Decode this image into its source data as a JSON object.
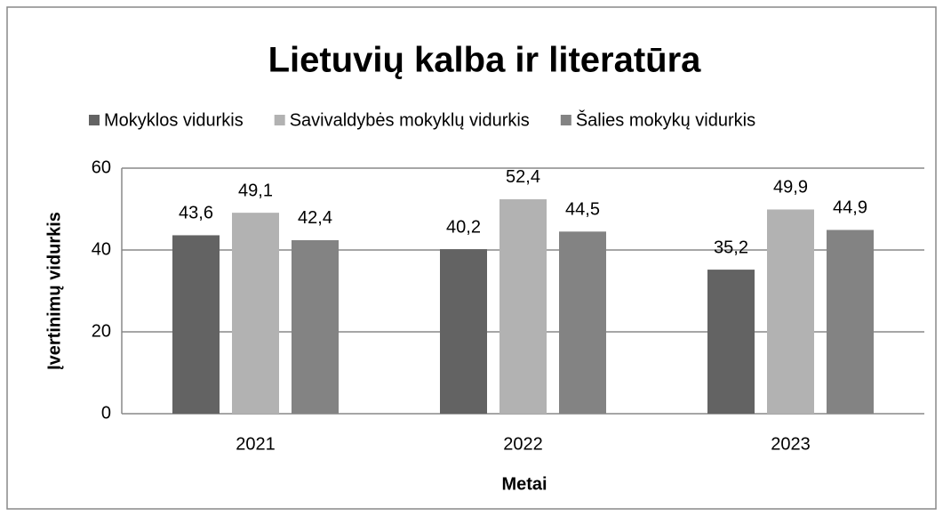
{
  "chart_data": {
    "type": "bar",
    "title": "Lietuvių kalba ir literatūra",
    "x_label": "Metai",
    "y_label": "Įvertinimų vidurkis",
    "categories": [
      "2021",
      "2022",
      "2023"
    ],
    "series": [
      {
        "name": "Mokyklos vidurkis",
        "color": "#636363",
        "values": [
          43.6,
          40.2,
          35.2
        ],
        "value_labels": [
          "43,6",
          "40,2",
          "35,2"
        ]
      },
      {
        "name": "Savivaldybės mokyklų vidurkis",
        "color": "#b2b2b2",
        "values": [
          49.1,
          52.4,
          49.9
        ],
        "value_labels": [
          "49,1",
          "52,4",
          "49,9"
        ]
      },
      {
        "name": "Šalies mokykų vidurkis",
        "color": "#838383",
        "values": [
          42.4,
          44.5,
          44.9
        ],
        "value_labels": [
          "42,4",
          "44,5",
          "44,9"
        ]
      }
    ],
    "ylim": [
      0,
      60
    ],
    "yticks": [
      0,
      20,
      40,
      60
    ],
    "grid": true,
    "legend": "top"
  }
}
